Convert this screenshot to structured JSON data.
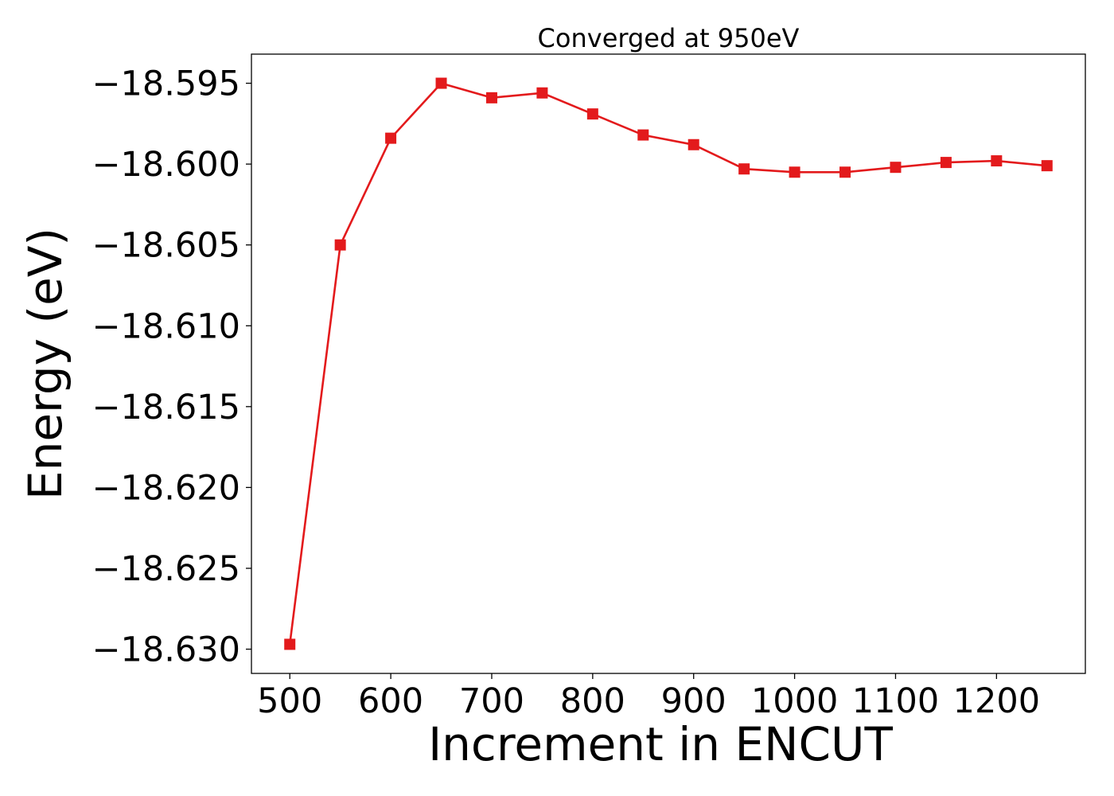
{
  "chart_data": {
    "type": "line",
    "title": "Converged at 950eV",
    "xlabel": "Increment in ENCUT",
    "ylabel": "Energy (eV)",
    "xlim": [
      462,
      1288
    ],
    "ylim": [
      -18.6315,
      -18.5932
    ],
    "xticks": [
      500,
      600,
      700,
      800,
      900,
      1000,
      1100,
      1200
    ],
    "yticks": [
      -18.63,
      -18.625,
      -18.62,
      -18.615,
      -18.61,
      -18.605,
      -18.6,
      -18.595
    ],
    "ytick_labels": [
      "−18.630",
      "−18.625",
      "−18.620",
      "−18.615",
      "−18.610",
      "−18.605",
      "−18.600",
      "−18.595"
    ],
    "grid": false,
    "legend": "none",
    "series": [
      {
        "color": "#e31a1c",
        "marker": "square",
        "x": [
          500,
          550,
          600,
          650,
          700,
          750,
          800,
          850,
          900,
          950,
          1000,
          1050,
          1100,
          1150,
          1200,
          1250
        ],
        "y": [
          -18.6297,
          -18.605,
          -18.5984,
          -18.595,
          -18.5959,
          -18.5956,
          -18.5969,
          -18.5982,
          -18.5988,
          -18.6003,
          -18.6005,
          -18.6005,
          -18.6002,
          -18.5999,
          -18.5998,
          -18.6001
        ]
      }
    ]
  }
}
